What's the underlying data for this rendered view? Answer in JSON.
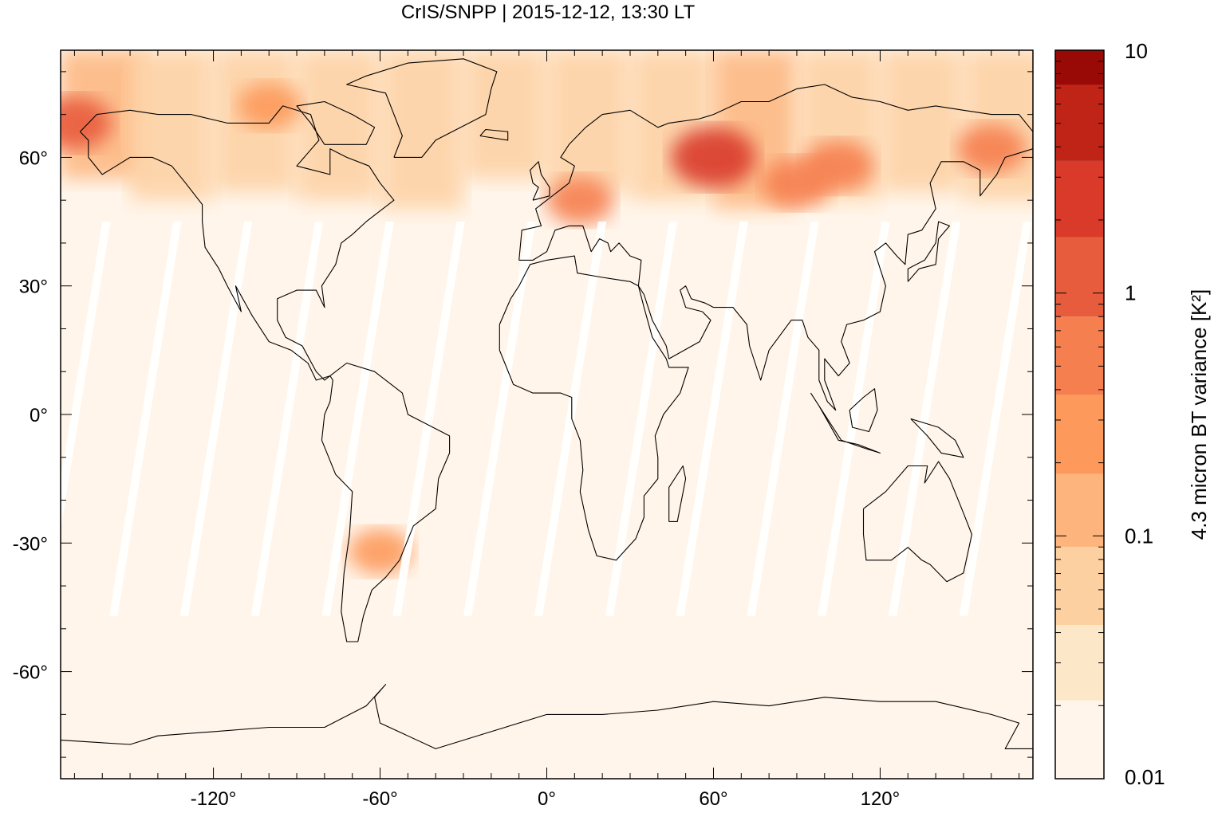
{
  "title": "CrIS/SNPP | 2015-12-12, 13:30 LT",
  "map": {
    "projection": "equirectangular",
    "lon_range": [
      -175,
      175
    ],
    "lat_range": [
      -85,
      85
    ],
    "lon_ticks": [
      {
        "value": -120,
        "label": "-120°"
      },
      {
        "value": -60,
        "label": "-60°"
      },
      {
        "value": 0,
        "label": "0°"
      },
      {
        "value": 60,
        "label": "60°"
      },
      {
        "value": 120,
        "label": "120°"
      }
    ],
    "lat_ticks": [
      {
        "value": 60,
        "label": "60°"
      },
      {
        "value": 30,
        "label": "30°"
      },
      {
        "value": 0,
        "label": "0°"
      },
      {
        "value": -30,
        "label": "-30°"
      },
      {
        "value": -60,
        "label": "-60°"
      }
    ],
    "background_color": "#fff5ea",
    "swath_gap_color": "#ffffff"
  },
  "colorbar": {
    "label": "4.3 micron BT variance [K²]",
    "scale": "log",
    "range": [
      0.01,
      10
    ],
    "tick_labels": [
      {
        "value": 10,
        "label": "10"
      },
      {
        "value": 1,
        "label": "1"
      },
      {
        "value": 0.1,
        "label": "0.1"
      },
      {
        "value": 0.01,
        "label": "0.01"
      }
    ],
    "levels": [
      0.01,
      0.021,
      0.043,
      0.09,
      0.18,
      0.38,
      0.8,
      1.7,
      3.5,
      7.2,
      10
    ],
    "colors": [
      "#fff5ea",
      "#fde7c9",
      "#fdd0a2",
      "#fdb57d",
      "#fd9a5b",
      "#f67f4f",
      "#e85c3e",
      "#d93a2a",
      "#c02417",
      "#990a06"
    ]
  },
  "chart_data": {
    "type": "heatmap",
    "title": "CrIS/SNPP | 2015-12-12, 13:30 LT",
    "xlabel": "",
    "ylabel": "",
    "colorbar_label": "4.3 micron BT variance [K²]",
    "x_range": [
      -175,
      175
    ],
    "y_range": [
      -85,
      85
    ],
    "z_range": [
      0.01,
      10
    ],
    "z_scale": "log",
    "hotspots": [
      {
        "lon": 60,
        "lat": 60,
        "value": 2.5
      },
      {
        "lon": 105,
        "lat": 58,
        "value": 0.6
      },
      {
        "lon": 90,
        "lat": 54,
        "value": 0.5
      },
      {
        "lon": 160,
        "lat": 62,
        "value": 0.5
      },
      {
        "lon": -170,
        "lat": 68,
        "value": 0.9
      },
      {
        "lon": -60,
        "lat": -32,
        "value": 0.3
      },
      {
        "lon": 12,
        "lat": 50,
        "value": 0.4
      },
      {
        "lon": -100,
        "lat": 72,
        "value": 0.3
      }
    ]
  }
}
